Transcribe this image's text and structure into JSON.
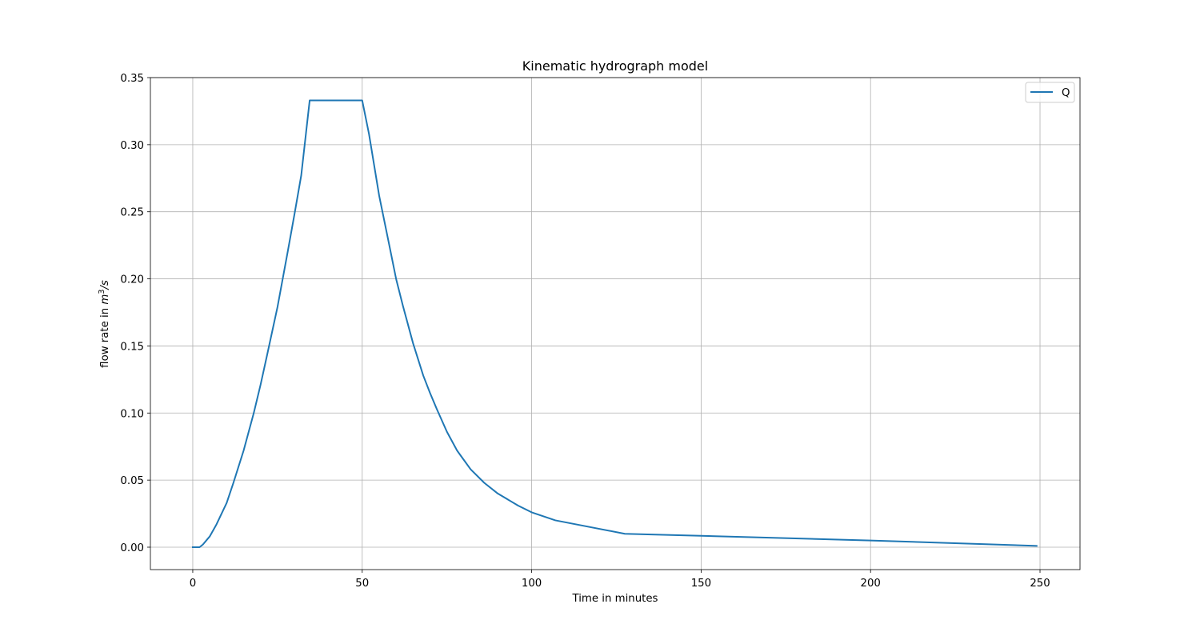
{
  "chart_data": {
    "type": "line",
    "title": "Kinematic hydrograph model",
    "xlabel": "Time in minutes",
    "ylabel_prefix": "flow rate in ",
    "ylabel_unit_base": "m",
    "ylabel_unit_sup": "3",
    "ylabel_unit_tail": "/s",
    "xlim": [
      -12.5,
      261.8
    ],
    "ylim": [
      -0.0167,
      0.35
    ],
    "xticks": [
      0,
      50,
      100,
      150,
      200,
      250
    ],
    "xtick_labels": [
      "0",
      "50",
      "100",
      "150",
      "200",
      "250"
    ],
    "yticks": [
      0.0,
      0.05,
      0.1,
      0.15,
      0.2,
      0.25,
      0.3,
      0.35
    ],
    "ytick_labels": [
      "0.00",
      "0.05",
      "0.10",
      "0.15",
      "0.20",
      "0.25",
      "0.30",
      "0.35"
    ],
    "grid": true,
    "legend_position": "top-right",
    "series": [
      {
        "name": "Q",
        "color": "#1f77b4",
        "x": [
          0,
          2,
          3,
          5,
          7,
          10,
          12,
          15,
          18,
          20,
          22,
          25,
          28,
          30,
          32,
          34.5,
          40,
          45,
          50,
          52,
          55,
          58,
          60,
          62,
          65,
          68,
          70,
          72,
          75,
          78,
          80,
          82,
          86,
          90,
          96,
          100,
          107,
          127.5,
          150,
          200,
          249
        ],
        "y": [
          0.0,
          0.0,
          0.002,
          0.008,
          0.017,
          0.033,
          0.048,
          0.072,
          0.1,
          0.121,
          0.144,
          0.179,
          0.22,
          0.248,
          0.277,
          0.333,
          0.333,
          0.333,
          0.333,
          0.308,
          0.262,
          0.225,
          0.2,
          0.18,
          0.152,
          0.128,
          0.115,
          0.103,
          0.086,
          0.072,
          0.065,
          0.058,
          0.048,
          0.04,
          0.031,
          0.026,
          0.02,
          0.01,
          0.0085,
          0.005,
          0.001
        ]
      }
    ]
  }
}
